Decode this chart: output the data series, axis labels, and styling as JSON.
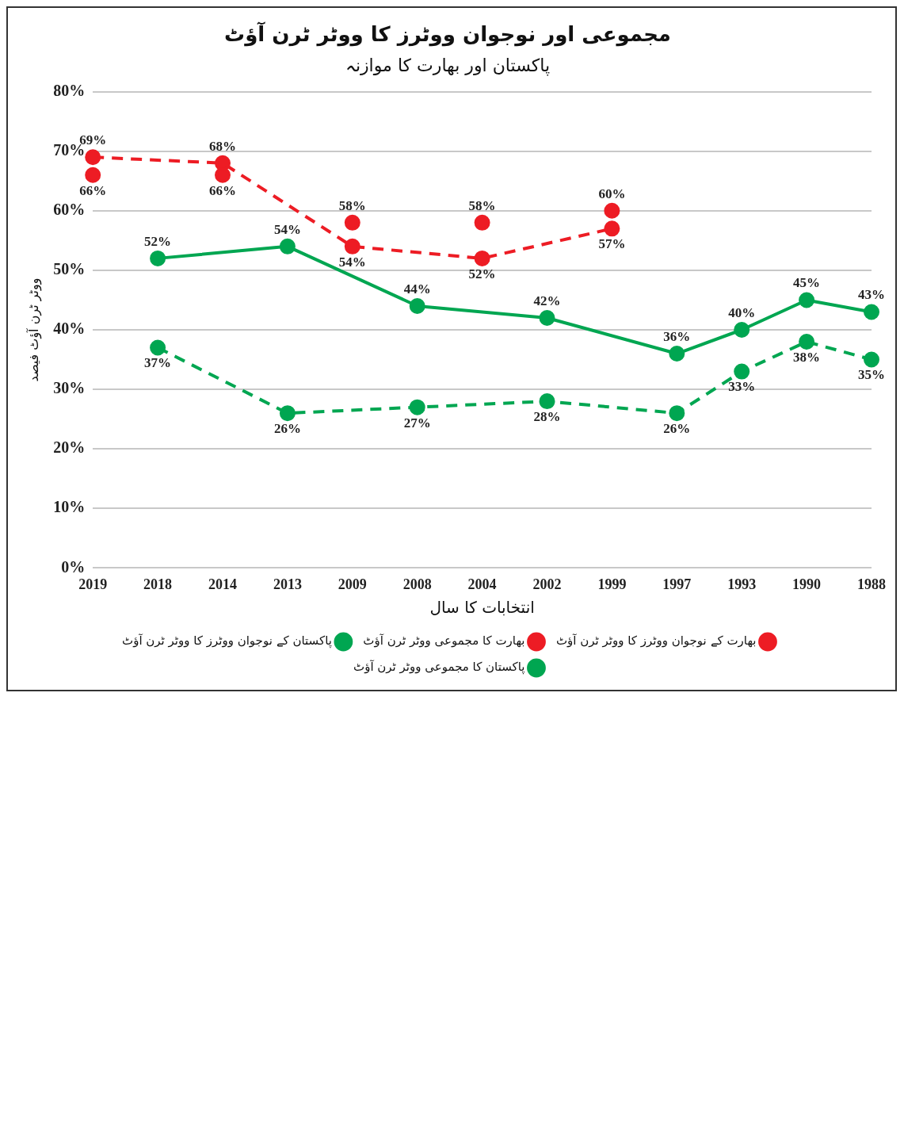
{
  "chart_data": {
    "type": "line",
    "title": "مجموعی اور نوجوان ووٹرز کا ووٹر ٹرن آؤٹ",
    "subtitle": "پاکستان اور بھارت کا موازنہ",
    "xlabel": "انتخابات کا سال",
    "ylabel": "ووٹر ٹرن آؤٹ فیصد",
    "categories": [
      "2019",
      "2018",
      "2014",
      "2013",
      "2009",
      "2008",
      "2004",
      "2002",
      "1999",
      "1997",
      "1993",
      "1990",
      "1988"
    ],
    "series": [
      {
        "name": "بھارت کے نوجوان ووٹرز کا ووٹر ٹرن آؤٹ",
        "color": "#ed1c24",
        "line_style": "dashed",
        "values": [
          69,
          null,
          68,
          null,
          54,
          null,
          52,
          null,
          57,
          null,
          null,
          null,
          null
        ],
        "value_labels": [
          "69%",
          null,
          "68%",
          null,
          "54%",
          null,
          "52%",
          null,
          "57%",
          null,
          null,
          null,
          null
        ]
      },
      {
        "name": "بھارت کا مجموعی ووٹر ٹرن آؤٹ",
        "type": "scatter",
        "color": "#ed1c24",
        "values": [
          66,
          null,
          66,
          null,
          58,
          null,
          58,
          null,
          60,
          null,
          null,
          null,
          null
        ],
        "value_labels": [
          "66%",
          null,
          "66%",
          null,
          "58%",
          null,
          "58%",
          null,
          "60%",
          null,
          null,
          null,
          null
        ]
      },
      {
        "name": "پاکستان کے نوجوان ووٹرز کا ووٹر ٹرن آؤٹ",
        "color": "#00a651",
        "line_style": "dashed",
        "values": [
          null,
          37,
          null,
          26,
          null,
          27,
          null,
          28,
          null,
          26,
          33,
          38,
          35
        ],
        "value_labels": [
          null,
          "37%",
          null,
          "26%",
          null,
          "27%",
          null,
          "28%",
          null,
          "26%",
          "33%",
          "38%",
          "35%"
        ]
      },
      {
        "name": "پاکستان کا مجموعی ووٹر ٹرن آؤٹ",
        "color": "#00a651",
        "line_style": "solid",
        "values": [
          null,
          52,
          null,
          54,
          null,
          44,
          null,
          42,
          null,
          36,
          40,
          45,
          43
        ],
        "value_labels": [
          null,
          "52%",
          null,
          "54%",
          null,
          "44%",
          null,
          "42%",
          null,
          "36%",
          "40%",
          "45%",
          "43%"
        ]
      }
    ],
    "ylim": [
      0,
      80
    ],
    "yticks": [
      {
        "value": 0,
        "label": "0%"
      },
      {
        "value": 10,
        "label": "10%"
      },
      {
        "value": 20,
        "label": "20%"
      },
      {
        "value": 30,
        "label": "30%"
      },
      {
        "value": 40,
        "label": "40%"
      },
      {
        "value": 50,
        "label": "50%"
      },
      {
        "value": 60,
        "label": "60%"
      },
      {
        "value": 70,
        "label": "70%"
      },
      {
        "value": 80,
        "label": "80%"
      }
    ],
    "grid": "y",
    "legend": "bottom",
    "marker": "circle"
  }
}
